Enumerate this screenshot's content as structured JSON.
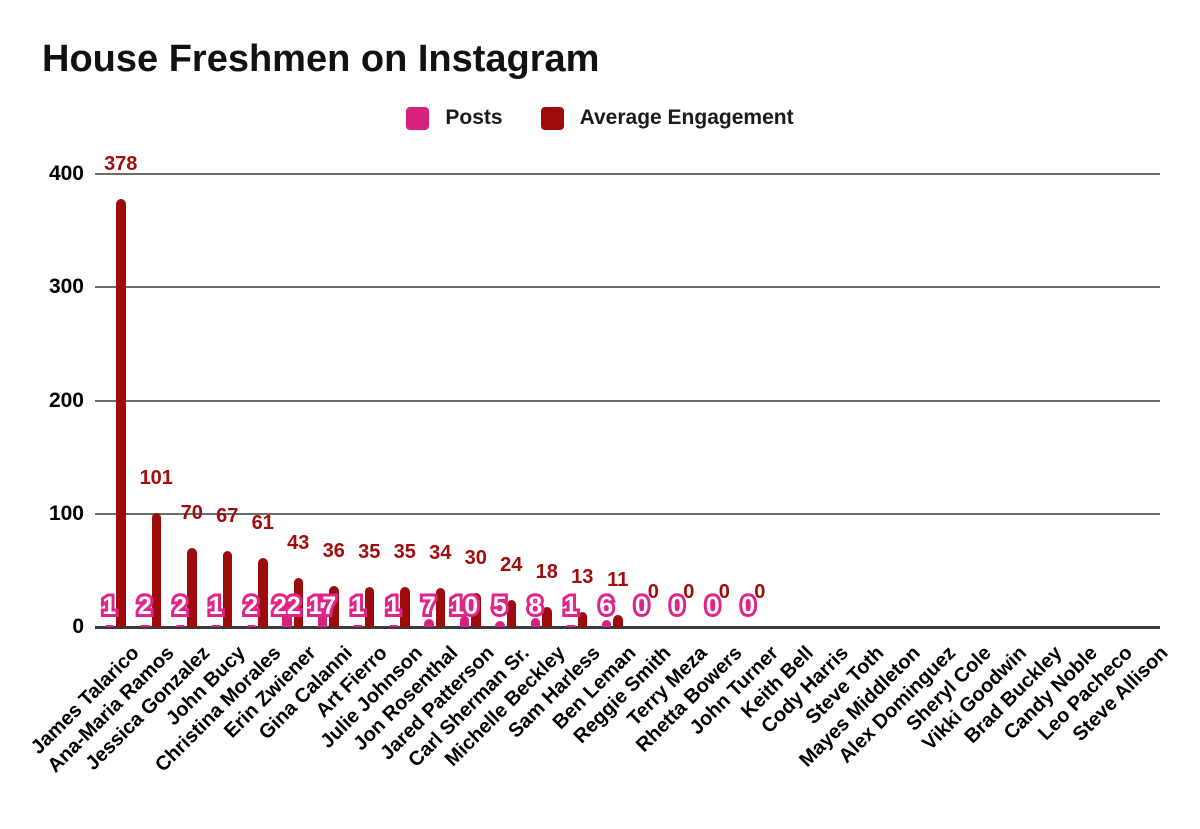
{
  "title": "House Freshmen on Instagram",
  "legend": {
    "posts_label": "Posts",
    "engagement_label": "Average Engagement"
  },
  "colors": {
    "posts": "#d7217e",
    "posts_label_fill": "#ffffff",
    "posts_label_stroke": "#e02489",
    "engagement": "#9e0b0b",
    "engagement_label": "#a10d0d",
    "grid": "#6b6b6b",
    "baseline": "#3a3a3a",
    "axis_text": "#000000"
  },
  "y_axis": {
    "ticks": [
      400,
      300,
      200,
      100,
      0
    ]
  },
  "chart_data": {
    "type": "bar",
    "title": "House Freshmen on Instagram",
    "xlabel": "",
    "ylabel": "",
    "ylim": [
      0,
      400
    ],
    "grid": true,
    "legend_position": "top",
    "categories": [
      "James Talarico",
      "Ana-Maria Ramos",
      "Jessica Gonzalez",
      "John Bucy",
      "Christina Morales",
      "Erin Zwiener",
      "Gina Calanni",
      "Art Fierro",
      "Julie Johnson",
      "Jon Rosenthal",
      "Jared Patterson",
      "Carl Sherman Sr.",
      "Michelle Beckley",
      "Sam Harless",
      "Ben Leman",
      "Reggie Smith",
      "Terry Meza",
      "Rhetta Bowers",
      "John Turner",
      "Keith Bell",
      "Cody Harris",
      "Steve Toth",
      "Mayes Middleton",
      "Alex Dominguez",
      "Sheryl Cole",
      "Vikki Goodwin",
      "Brad Buckley",
      "Candy Noble",
      "Leo Pacheco",
      "Steve Allison"
    ],
    "series": [
      {
        "name": "Posts",
        "color": "#d7217e",
        "values": [
          1,
          2,
          2,
          1,
          2,
          22,
          17,
          1,
          1,
          7,
          10,
          5,
          8,
          1,
          6,
          0,
          0,
          0,
          0,
          null,
          null,
          null,
          null,
          null,
          null,
          null,
          null,
          null,
          null,
          null
        ]
      },
      {
        "name": "Average Engagement",
        "color": "#9e0b0b",
        "values": [
          378,
          101,
          70,
          67,
          61,
          43,
          36,
          35,
          35,
          34,
          30,
          24,
          18,
          13,
          11,
          0,
          0,
          0,
          0,
          null,
          null,
          null,
          null,
          null,
          null,
          null,
          null,
          null,
          null,
          null
        ]
      }
    ]
  }
}
